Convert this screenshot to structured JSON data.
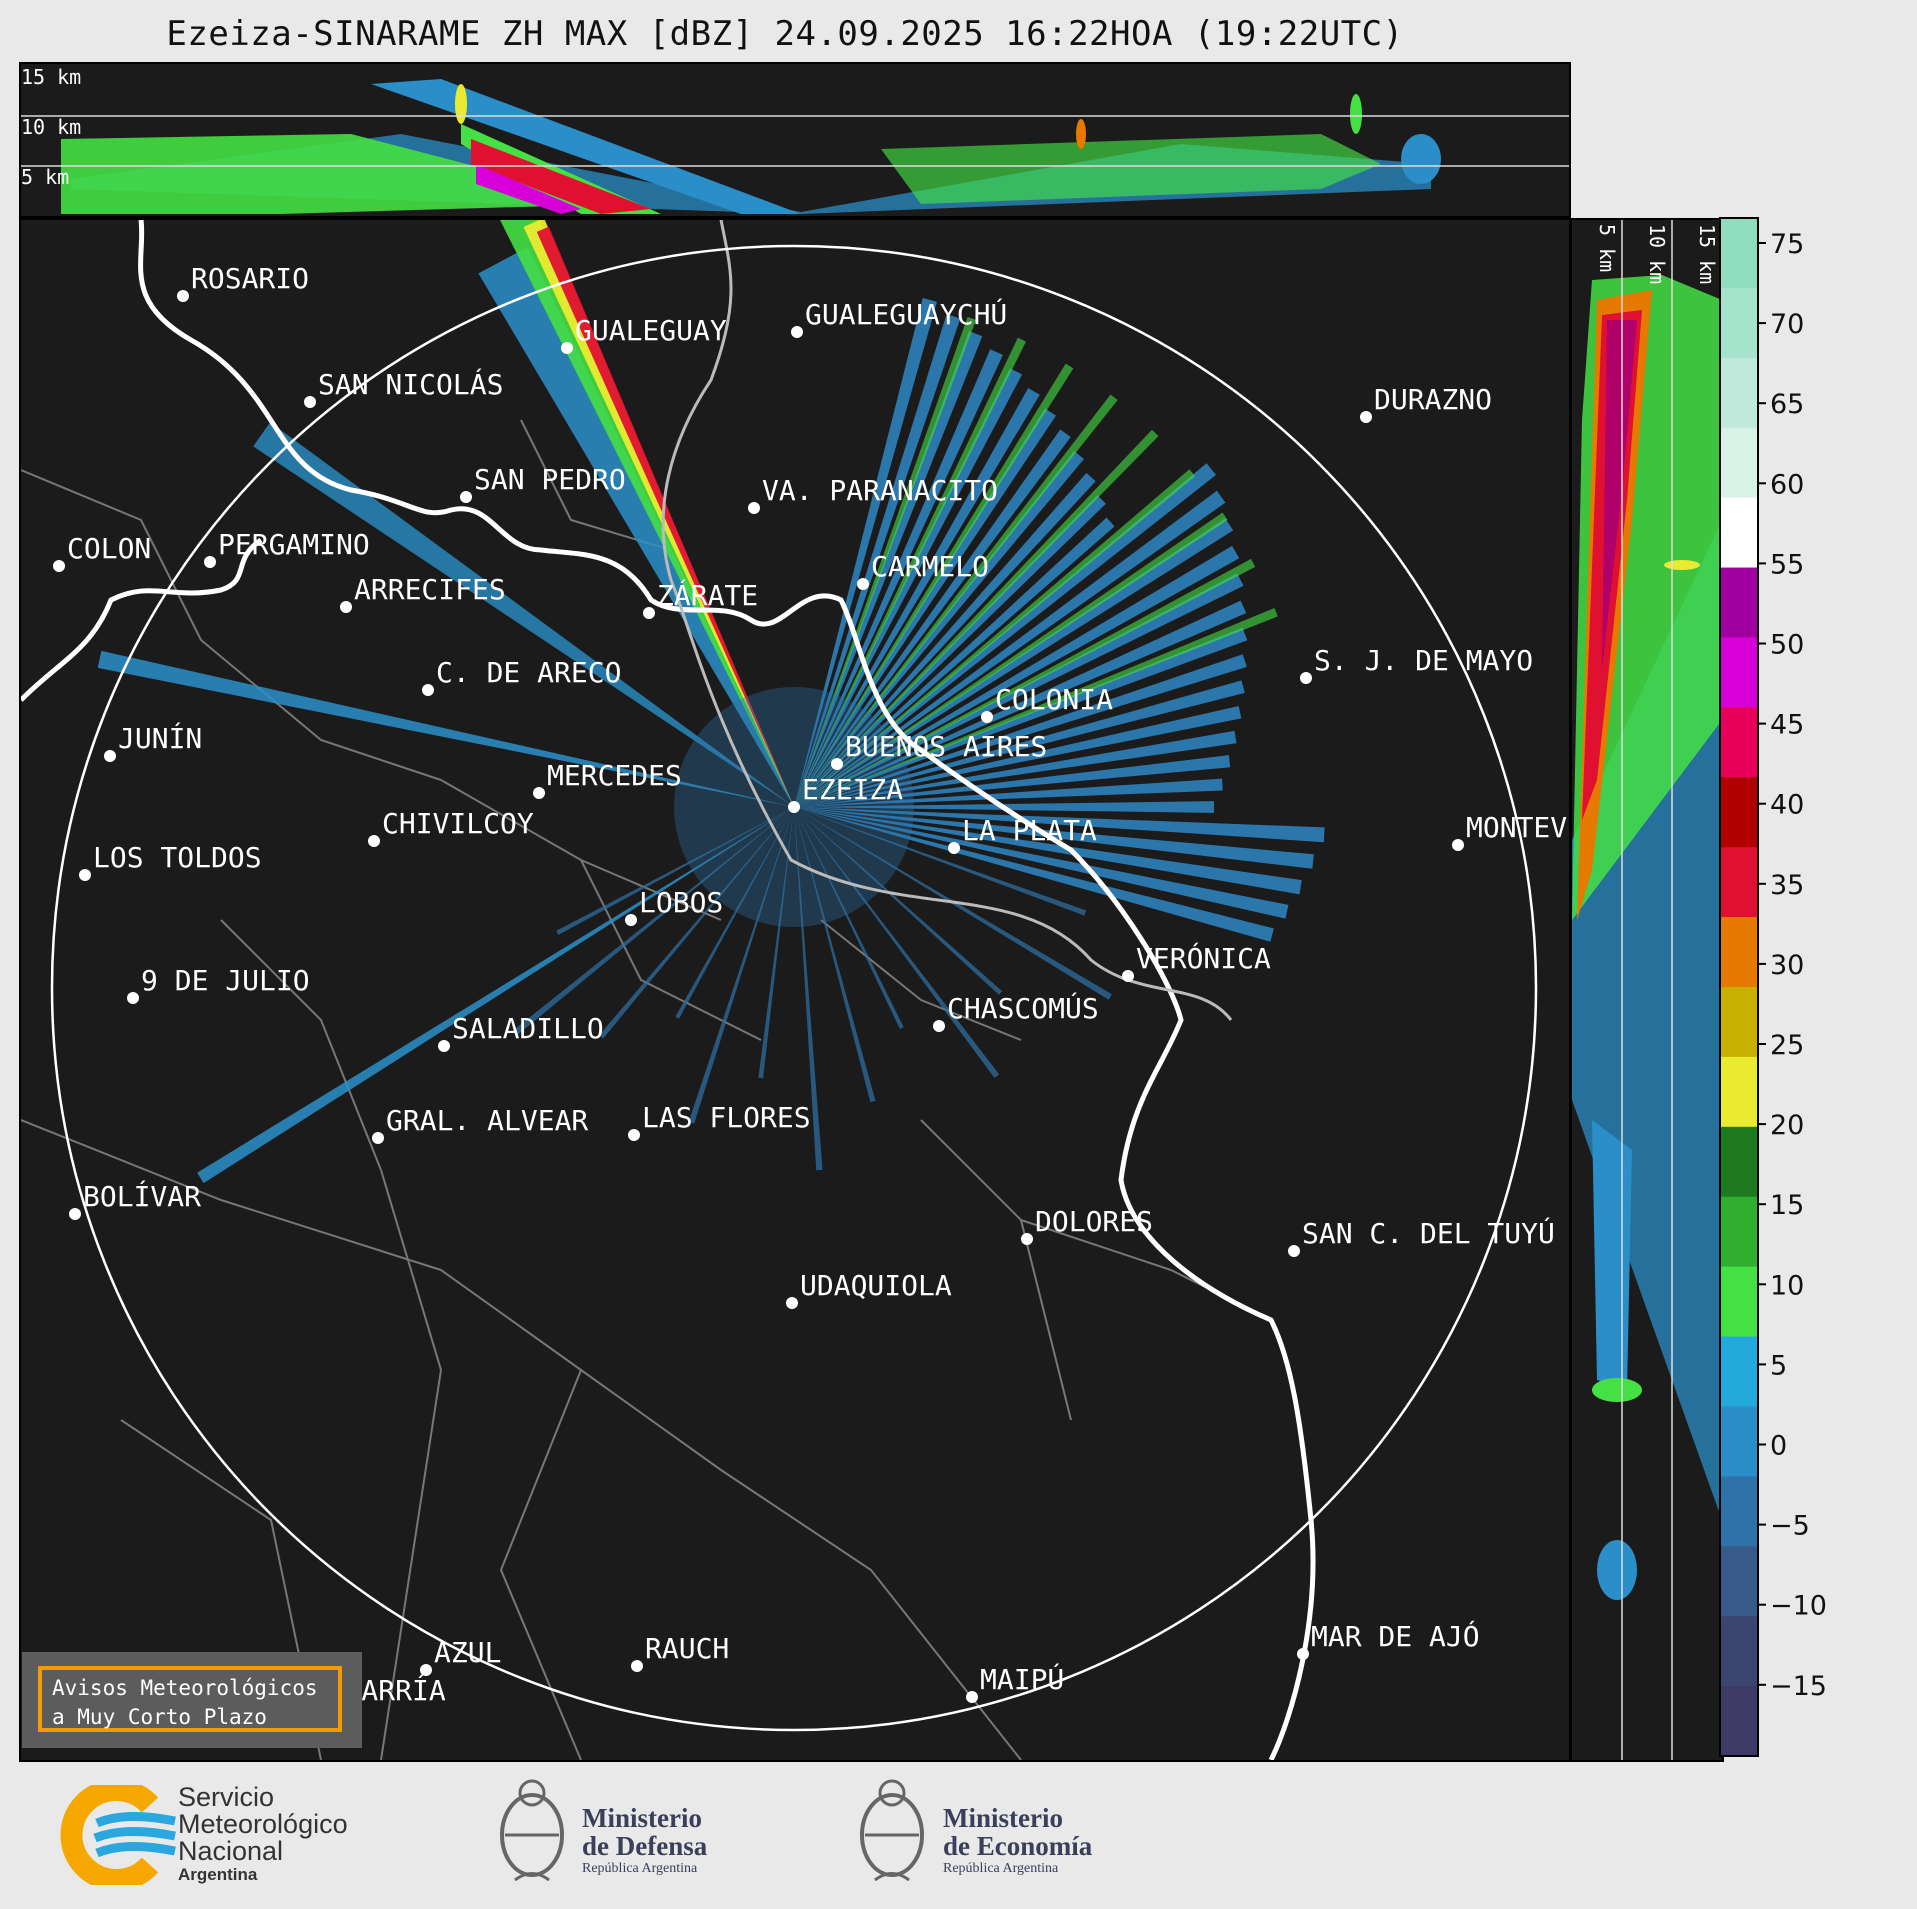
{
  "title": "Ezeiza-SINARAME ZH MAX [dBZ] 24.09.2025 16:22HOA (19:22UTC)",
  "top_panel": {
    "km_labels": [
      "15 km",
      "10 km",
      "5 km"
    ]
  },
  "side_panel": {
    "km_labels": [
      "5 km",
      "10 km",
      "15 km"
    ]
  },
  "cities": [
    {
      "name": "ROSARIO"
    },
    {
      "name": "GUALEGUAYCHÚ"
    },
    {
      "name": "GUALEGUAY"
    },
    {
      "name": "SAN NICOLÁS"
    },
    {
      "name": "DURAZNO"
    },
    {
      "name": "SAN PEDRO"
    },
    {
      "name": "VA. PARANACITO"
    },
    {
      "name": "COLON"
    },
    {
      "name": "PERGAMINO"
    },
    {
      "name": "CARMELO"
    },
    {
      "name": "ARRECIFES"
    },
    {
      "name": "ZÁRATE"
    },
    {
      "name": "C. DE ARECO"
    },
    {
      "name": "S. J. DE MAYO"
    },
    {
      "name": "COLONIA"
    },
    {
      "name": "JUNÍN"
    },
    {
      "name": "BUENOS AIRES"
    },
    {
      "name": "MERCEDES"
    },
    {
      "name": "EZEIZA"
    },
    {
      "name": "MONTEVIDEO"
    },
    {
      "name": "CHIVILCOY"
    },
    {
      "name": "LA PLATA"
    },
    {
      "name": "LOS TOLDOS"
    },
    {
      "name": "LOBOS"
    },
    {
      "name": "VERÓNICA"
    },
    {
      "name": "9 DE JULIO"
    },
    {
      "name": "CHASCOMÚS"
    },
    {
      "name": "SALADILLO"
    },
    {
      "name": "GRAL. ALVEAR"
    },
    {
      "name": "LAS FLORES"
    },
    {
      "name": "BOLÍVAR"
    },
    {
      "name": "DOLORES"
    },
    {
      "name": "SAN C. DEL TUYÚ"
    },
    {
      "name": "UDAQUIOLA"
    },
    {
      "name": "MAR DE AJÓ"
    },
    {
      "name": "AZUL"
    },
    {
      "name": "RAUCH"
    },
    {
      "name": "OLAVARRÍA"
    },
    {
      "name": "MAIPÚ"
    }
  ],
  "colorbar": {
    "ticks": [
      "75",
      "70",
      "65",
      "60",
      "55",
      "50",
      "45",
      "40",
      "35",
      "30",
      "25",
      "20",
      "15",
      "10",
      "5",
      "0",
      "−5",
      "−10",
      "−15"
    ],
    "colors": [
      "#8fdcbf",
      "#a6e3cd",
      "#bfeadb",
      "#d8f2e8",
      "#ffffff",
      "#a000a0",
      "#d800d8",
      "#e8005a",
      "#b00000",
      "#e01030",
      "#e67a00",
      "#c8b000",
      "#eaea30",
      "#1e7a1e",
      "#2fae2f",
      "#44e044",
      "#22aadd",
      "#2a8fc8",
      "#2f72a8",
      "#385a8a",
      "#3a4670",
      "#3e3a66"
    ]
  },
  "avisos": {
    "line1": "Avisos Meteorológicos",
    "line2": "a Muy Corto Plazo"
  },
  "footer": {
    "smn": {
      "line1": "Servicio",
      "line2": "Meteorológico",
      "line3": "Nacional",
      "line4": "Argentina"
    },
    "defensa": {
      "line1": "Ministerio",
      "line2": "de Defensa",
      "line3": "República Argentina"
    },
    "economia": {
      "line1": "Ministerio",
      "line2": "de Economía",
      "line3": "República Argentina"
    }
  }
}
